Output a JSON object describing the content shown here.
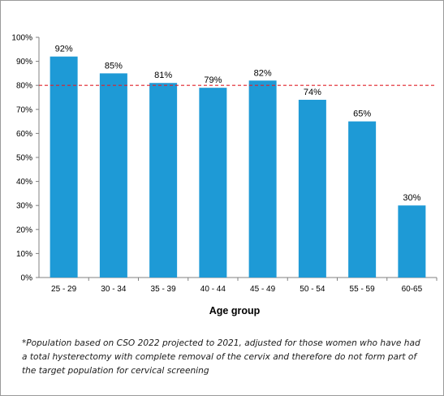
{
  "chart_data": {
    "type": "bar",
    "categories": [
      "25 - 29",
      "30 - 34",
      "35 - 39",
      "40 - 44",
      "45 - 49",
      "50 - 54",
      "55 - 59",
      "60-65"
    ],
    "values": [
      92,
      85,
      81,
      79,
      82,
      74,
      65,
      30
    ],
    "data_labels": [
      "92%",
      "85%",
      "81%",
      "79%",
      "82%",
      "74%",
      "65%",
      "30%"
    ],
    "y_ticks": [
      "0%",
      "10%",
      "20%",
      "30%",
      "40%",
      "50%",
      "60%",
      "70%",
      "80%",
      "90%",
      "100%"
    ],
    "ylim": [
      0,
      100
    ],
    "xlabel": "Age group",
    "ylabel": "",
    "title": "",
    "reference_line": {
      "value": 80,
      "style": "dashed",
      "color": "#e0202a"
    },
    "bar_color": "#1e9ad6",
    "grid": false,
    "legend": "none"
  },
  "footnote": "*Population based on CSO 2022 projected to 2021, adjusted for those women who have had a total hysterectomy with complete removal of the cervix and therefore do not form part of the target population for cervical screening"
}
